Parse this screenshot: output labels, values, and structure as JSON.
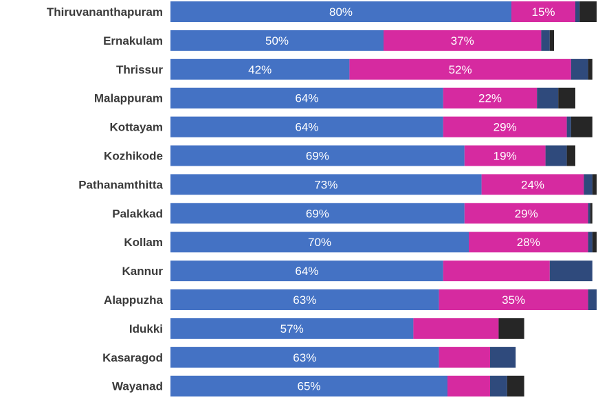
{
  "chart_data": {
    "type": "bar",
    "orientation": "horizontal",
    "stacked": true,
    "categories": [
      "Thiruvananthapuram",
      "Ernakulam",
      "Thrissur",
      "Malappuram",
      "Kottayam",
      "Kozhikode",
      "Pathanamthitta",
      "Palakkad",
      "Kollam",
      "Kannur",
      "Alappuzha",
      "Idukki",
      "Kasaragod",
      "Wayanad"
    ],
    "series": [
      {
        "color": "#4472c4",
        "values": [
          80,
          50,
          42,
          64,
          64,
          69,
          73,
          69,
          70,
          64,
          63,
          57,
          63,
          65
        ],
        "labels": [
          "80%",
          "50%",
          "42%",
          "64%",
          "64%",
          "69%",
          "73%",
          "69%",
          "70%",
          "64%",
          "63%",
          "57%",
          "63%",
          "65%"
        ]
      },
      {
        "color": "#d62aa0",
        "values": [
          15,
          37,
          52,
          22,
          29,
          19,
          24,
          29,
          28,
          25,
          35,
          20,
          12,
          10
        ],
        "labels": [
          "15%",
          "37%",
          "52%",
          "22%",
          "29%",
          "19%",
          "24%",
          "29%",
          "28%",
          "",
          "35%",
          "",
          "",
          ""
        ]
      },
      {
        "color": "#2f4a7c",
        "values": [
          1,
          2,
          4,
          5,
          1,
          5,
          2,
          0.5,
          1,
          10,
          2,
          0,
          6,
          4
        ],
        "labels": [
          "",
          "",
          "",
          "",
          "",
          "",
          "",
          "",
          "",
          "",
          "",
          "",
          "",
          ""
        ]
      },
      {
        "color": "#262626",
        "values": [
          4,
          1,
          1,
          4,
          5,
          2,
          1,
          0.5,
          1,
          0,
          0,
          6,
          0,
          4
        ],
        "labels": [
          "",
          "",
          "",
          "",
          "",
          "",
          "",
          "",
          "",
          "",
          "",
          "",
          "",
          ""
        ]
      }
    ],
    "grid": false,
    "legend": "none"
  }
}
